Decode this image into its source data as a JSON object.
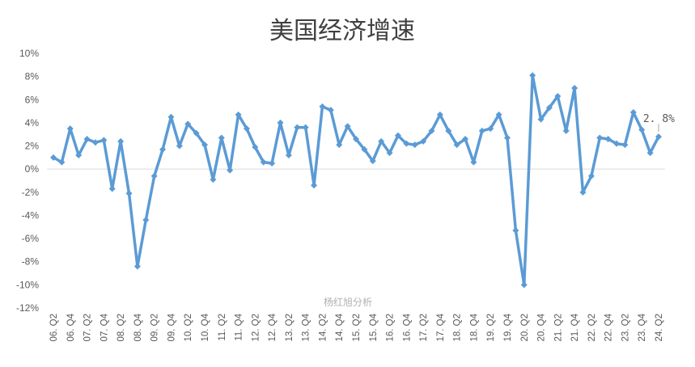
{
  "chart_data": {
    "type": "line",
    "title": "美国经济增速",
    "watermark": "杨红旭分析",
    "xlabel": "",
    "ylabel": "",
    "ylim": [
      -12,
      10
    ],
    "ytick_step": 2,
    "ytick_labels": [
      "10%",
      "8%",
      "6%",
      "4%",
      "2%",
      "0%",
      "-2%",
      "-4%",
      "-6%",
      "-8%",
      "-10%",
      "-12%"
    ],
    "grid": false,
    "zero_line": true,
    "line_color": "#5B9BD5",
    "marker": "diamond",
    "x": [
      "06.Q2",
      "06.Q3",
      "06.Q4",
      "07.Q1",
      "07.Q2",
      "07.Q3",
      "07.Q4",
      "08.Q1",
      "08.Q2",
      "08.Q3",
      "08.Q4",
      "09.Q1",
      "09.Q2",
      "09.Q3",
      "09.Q4",
      "10.Q1",
      "10.Q2",
      "10.Q3",
      "10.Q4",
      "11.Q1",
      "11.Q2",
      "11.Q3",
      "11.Q4",
      "12.Q1",
      "12.Q2",
      "12.Q3",
      "12.Q4",
      "13.Q1",
      "13.Q2",
      "13.Q3",
      "13.Q4",
      "14.Q1",
      "14.Q2",
      "14.Q3",
      "14.Q4",
      "15.Q1",
      "15.Q2",
      "15.Q3",
      "15.Q4",
      "16.Q1",
      "16.Q2",
      "16.Q3",
      "16.Q4",
      "17.Q1",
      "17.Q2",
      "17.Q3",
      "17.Q4",
      "18.Q1",
      "18.Q2",
      "18.Q3",
      "18.Q4",
      "19.Q1",
      "19.Q2",
      "19.Q3",
      "19.Q4",
      "20.Q1",
      "20.Q2",
      "20.Q3",
      "20.Q4",
      "21.Q1",
      "21.Q2",
      "21.Q3",
      "21.Q4",
      "22.Q1",
      "22.Q2",
      "22.Q3",
      "22.Q4",
      "23.Q1",
      "23.Q2",
      "23.Q3",
      "23.Q4",
      "24.Q1",
      "24.Q2"
    ],
    "x_tick_labels": [
      "06. Q2",
      "06. Q4",
      "07. Q2",
      "07. Q4",
      "08. Q2",
      "08. Q4",
      "09. Q2",
      "09. Q4",
      "10. Q2",
      "10. Q4",
      "11. Q2",
      "11. Q4",
      "12. Q2",
      "12. Q4",
      "13. Q2",
      "13. Q4",
      "14. Q2",
      "14. Q4",
      "15. Q2",
      "15. Q4",
      "16. Q2",
      "16. Q4",
      "17. Q2",
      "17. Q4",
      "18. Q2",
      "18. Q4",
      "19. Q2",
      "19. Q4",
      "20. Q2",
      "20. Q4",
      "21. Q2",
      "21. Q4",
      "22. Q2",
      "22. Q4",
      "23. Q2",
      "23. Q4",
      "24. Q2"
    ],
    "values": [
      1.0,
      0.6,
      3.5,
      1.2,
      2.6,
      2.3,
      2.5,
      -1.7,
      2.4,
      -2.1,
      -8.4,
      -4.4,
      -0.6,
      1.7,
      4.5,
      2.0,
      3.9,
      3.1,
      2.1,
      -0.9,
      2.7,
      -0.1,
      4.7,
      3.5,
      1.9,
      0.6,
      0.5,
      4.0,
      1.2,
      3.6,
      3.6,
      -1.4,
      5.4,
      5.1,
      2.1,
      3.7,
      2.6,
      1.7,
      0.7,
      2.4,
      1.4,
      2.9,
      2.2,
      2.1,
      2.4,
      3.3,
      4.7,
      3.3,
      2.1,
      2.6,
      0.6,
      3.3,
      3.5,
      4.7,
      2.7,
      -5.3,
      -10.0,
      8.1,
      4.3,
      5.3,
      6.3,
      3.3,
      7.0,
      -2.0,
      -0.6,
      2.7,
      2.6,
      2.2,
      2.1,
      4.9,
      3.4,
      1.4,
      2.8
    ],
    "data_labels": [
      {
        "index": 72,
        "text": "2. 8%"
      }
    ]
  }
}
